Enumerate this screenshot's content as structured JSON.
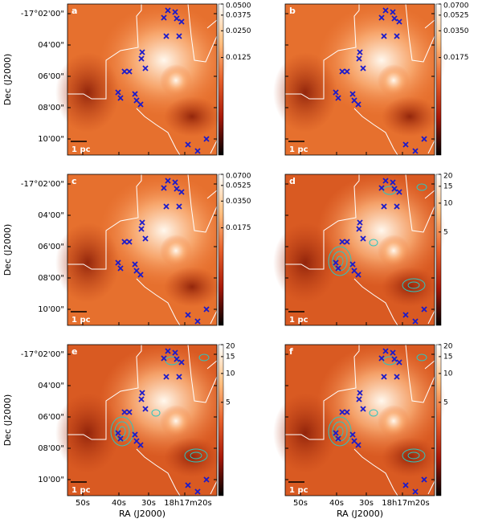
{
  "panels": [
    {
      "label": "a",
      "colorbar": {
        "scale": "log",
        "lim": [
          0.001,
          0.05
        ],
        "ticks": [
          {
            "value": 0.05,
            "label": "0.0500"
          },
          {
            "value": 0.0375,
            "label": "0.0375"
          },
          {
            "value": 0.025,
            "label": "0.0250"
          },
          {
            "value": 0.0125,
            "label": "0.0125"
          }
        ]
      }
    },
    {
      "label": "b",
      "colorbar": {
        "scale": "log",
        "lim": [
          0.0014,
          0.07
        ],
        "ticks": [
          {
            "value": 0.07,
            "label": "0.0700"
          },
          {
            "value": 0.0525,
            "label": "0.0525"
          },
          {
            "value": 0.035,
            "label": "0.0350"
          },
          {
            "value": 0.0175,
            "label": "0.0175"
          }
        ]
      }
    },
    {
      "label": "c",
      "colorbar": {
        "scale": "log",
        "lim": [
          0.0014,
          0.07
        ],
        "ticks": [
          {
            "value": 0.07,
            "label": "0.0700"
          },
          {
            "value": 0.0525,
            "label": "0.0525"
          },
          {
            "value": 0.035,
            "label": "0.0350"
          },
          {
            "value": 0.0175,
            "label": "0.0175"
          }
        ]
      }
    },
    {
      "label": "d",
      "colorbar": {
        "scale": "log",
        "lim": [
          0.53,
          20
        ],
        "ticks": [
          20,
          15,
          10,
          5
        ]
      }
    },
    {
      "label": "e",
      "colorbar": {
        "scale": "log",
        "lim": [
          0.53,
          20
        ],
        "ticks": [
          20,
          15,
          10,
          5
        ]
      }
    },
    {
      "label": "f",
      "colorbar": {
        "scale": "log",
        "lim": [
          0.53,
          20
        ],
        "ticks": [
          20,
          15,
          10,
          5
        ]
      }
    }
  ],
  "y_axis": {
    "title": "Dec (J2000)",
    "ticks": [
      "-17°02'00\"",
      "04'00\"",
      "06'00\"",
      "08'00\"",
      "10'00\""
    ]
  },
  "x_axis": {
    "title": "RA (J2000)",
    "ticks": [
      "50s",
      "40s",
      "30s",
      "18h17m20s"
    ]
  },
  "scale_bar": "1 pc"
}
